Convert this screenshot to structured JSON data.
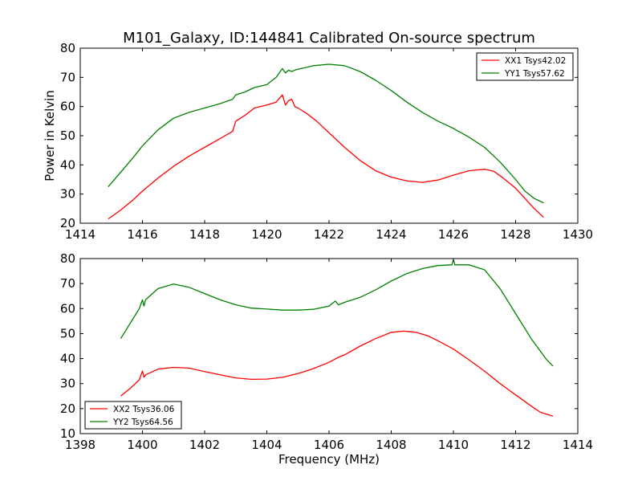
{
  "figure": {
    "title": "M101_Galaxy, ID:144841 Calibrated On-source spectrum",
    "xlabel": "Frequency (MHz)"
  },
  "chart_data": [
    {
      "type": "line",
      "title": "M101_Galaxy, ID:144841 Calibrated On-source spectrum",
      "ylabel": "Power in Kelvin",
      "xlabel": "",
      "xlim": [
        1414,
        1430
      ],
      "ylim": [
        20,
        80
      ],
      "xticks": [
        1414,
        1416,
        1418,
        1420,
        1422,
        1424,
        1426,
        1428,
        1430
      ],
      "yticks": [
        20,
        30,
        40,
        50,
        60,
        70,
        80
      ],
      "legend_position": "top-right",
      "series": [
        {
          "name": "XX1 Tsys42.02",
          "color": "#ff0000",
          "x": [
            1414.9,
            1415.3,
            1415.7,
            1416.0,
            1416.5,
            1417.0,
            1417.5,
            1418.0,
            1418.5,
            1418.9,
            1419.0,
            1419.3,
            1419.6,
            1420.0,
            1420.3,
            1420.5,
            1420.6,
            1420.7,
            1420.8,
            1420.9,
            1421.0,
            1421.3,
            1421.6,
            1422.0,
            1422.5,
            1423.0,
            1423.5,
            1424.0,
            1424.5,
            1425.0,
            1425.5,
            1426.0,
            1426.5,
            1427.0,
            1427.3,
            1427.6,
            1428.0,
            1428.3,
            1428.6,
            1428.9
          ],
          "y": [
            21.5,
            24.5,
            28.0,
            31.0,
            35.5,
            39.5,
            43.0,
            46.0,
            49.0,
            51.5,
            55.0,
            57.0,
            59.5,
            60.5,
            61.5,
            64.0,
            60.5,
            62.0,
            62.5,
            60.0,
            59.5,
            57.5,
            55.0,
            51.0,
            46.0,
            41.5,
            38.0,
            35.8,
            34.5,
            34.0,
            34.8,
            36.5,
            38.0,
            38.5,
            37.8,
            35.5,
            32.0,
            28.5,
            25.0,
            22.0
          ]
        },
        {
          "name": "YY1 Tsys57.62",
          "color": "#008000",
          "x": [
            1414.9,
            1415.3,
            1415.7,
            1416.0,
            1416.5,
            1417.0,
            1417.5,
            1418.0,
            1418.5,
            1418.9,
            1419.0,
            1419.3,
            1419.6,
            1420.0,
            1420.3,
            1420.5,
            1420.6,
            1420.7,
            1420.8,
            1420.9,
            1421.0,
            1421.5,
            1422.0,
            1422.5,
            1423.0,
            1423.5,
            1424.0,
            1424.5,
            1425.0,
            1425.5,
            1426.0,
            1426.5,
            1427.0,
            1427.5,
            1428.0,
            1428.3,
            1428.6,
            1428.9
          ],
          "y": [
            32.5,
            37.5,
            42.5,
            46.5,
            52.0,
            56.0,
            58.0,
            59.5,
            61.0,
            62.5,
            64.0,
            65.0,
            66.5,
            67.5,
            70.0,
            73.0,
            71.5,
            72.5,
            72.0,
            72.5,
            72.8,
            74.0,
            74.5,
            74.0,
            72.0,
            69.0,
            65.5,
            61.5,
            58.0,
            55.0,
            52.5,
            49.5,
            46.0,
            41.0,
            35.0,
            31.0,
            28.5,
            27.0
          ]
        }
      ]
    },
    {
      "type": "line",
      "title": "",
      "ylabel": "",
      "xlabel": "Frequency (MHz)",
      "xlim": [
        1398,
        1414
      ],
      "ylim": [
        10,
        80
      ],
      "xticks": [
        1398,
        1400,
        1402,
        1404,
        1406,
        1408,
        1410,
        1412,
        1414
      ],
      "yticks": [
        10,
        20,
        30,
        40,
        50,
        60,
        70,
        80
      ],
      "legend_position": "bottom-left",
      "series": [
        {
          "name": "XX2 Tsys36.06",
          "color": "#ff0000",
          "x": [
            1399.3,
            1399.6,
            1399.9,
            1400.0,
            1400.05,
            1400.1,
            1400.5,
            1401.0,
            1401.5,
            1402.0,
            1402.5,
            1403.0,
            1403.5,
            1404.0,
            1404.5,
            1405.0,
            1405.5,
            1406.0,
            1406.3,
            1406.5,
            1407.0,
            1407.5,
            1408.0,
            1408.4,
            1408.8,
            1409.2,
            1409.6,
            1410.0,
            1410.5,
            1411.0,
            1411.5,
            1412.0,
            1412.5,
            1412.8,
            1413.2
          ],
          "y": [
            25.0,
            28.0,
            31.5,
            35.0,
            32.5,
            33.5,
            35.8,
            36.5,
            36.2,
            34.8,
            33.5,
            32.3,
            31.7,
            31.8,
            32.5,
            34.0,
            36.0,
            38.5,
            40.5,
            41.5,
            45.0,
            48.0,
            50.5,
            51.0,
            50.5,
            49.0,
            46.5,
            43.8,
            39.5,
            35.0,
            30.0,
            25.5,
            21.0,
            18.5,
            17.0
          ]
        },
        {
          "name": "YY2 Tsys64.56",
          "color": "#008000",
          "x": [
            1399.3,
            1399.6,
            1399.9,
            1400.0,
            1400.05,
            1400.1,
            1400.5,
            1401.0,
            1401.5,
            1402.0,
            1402.5,
            1403.0,
            1403.5,
            1404.0,
            1404.5,
            1405.0,
            1405.5,
            1406.0,
            1406.2,
            1406.3,
            1406.5,
            1407.0,
            1407.5,
            1408.0,
            1408.5,
            1409.0,
            1409.5,
            1409.95,
            1410.0,
            1410.05,
            1410.5,
            1411.0,
            1411.5,
            1412.0,
            1412.5,
            1413.0,
            1413.2
          ],
          "y": [
            48.0,
            54.0,
            60.0,
            63.5,
            61.0,
            63.5,
            68.0,
            69.8,
            68.5,
            66.0,
            63.5,
            61.5,
            60.2,
            59.8,
            59.4,
            59.4,
            59.7,
            61.0,
            63.0,
            61.5,
            62.5,
            64.5,
            67.5,
            71.0,
            74.0,
            76.0,
            77.2,
            77.5,
            79.5,
            77.5,
            77.5,
            75.5,
            68.0,
            58.0,
            48.0,
            39.5,
            37.0
          ]
        }
      ]
    }
  ]
}
